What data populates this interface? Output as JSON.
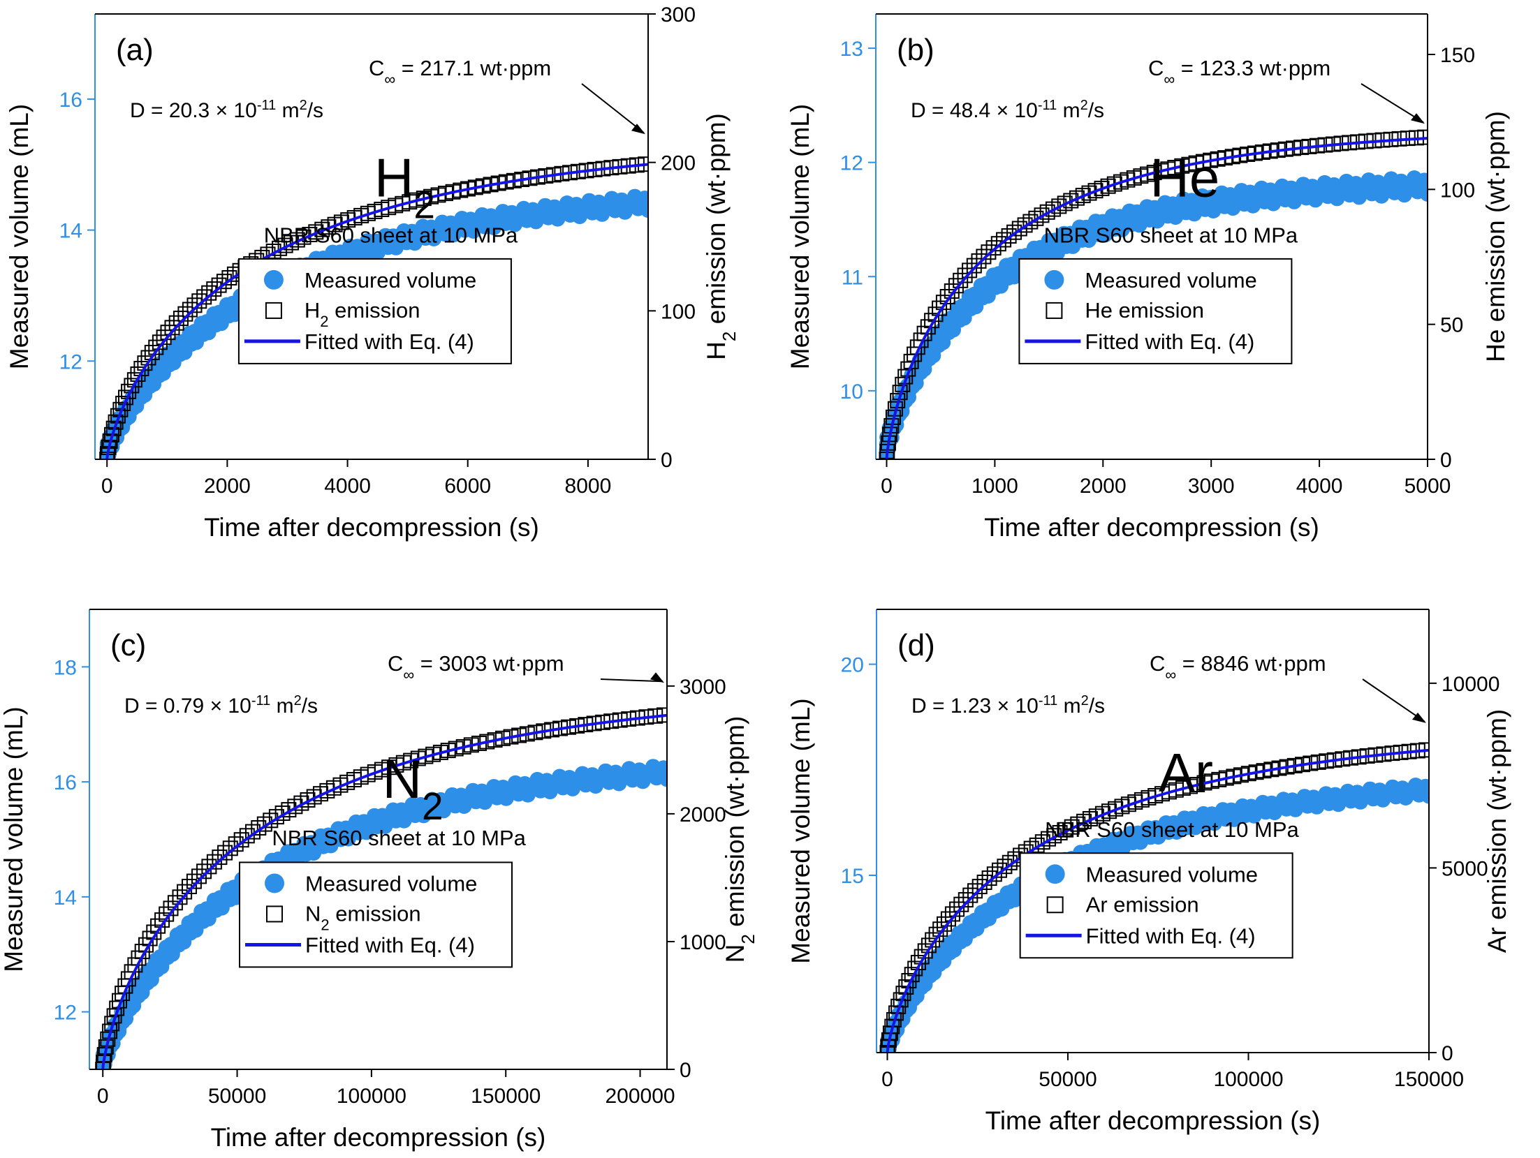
{
  "figure": {
    "shared": {
      "xlabel": "Time after decompression (s)",
      "ylabel_left": "Measured volume (mL)",
      "legend_measured": "Measured volume",
      "legend_fit": "Fitted with Eq. (4)",
      "condition": "NBR S60 sheet at 10 MPa"
    }
  },
  "colors": {
    "measured": "#2E8FE8",
    "fit": "#1414E6",
    "axis_left": "#2E8FE8",
    "emission": "#000000"
  },
  "chart_data": [
    {
      "type": "scatter",
      "panel": "(a)",
      "gas": "H",
      "gas_sub": "2",
      "title": "H2",
      "D_prefix": "D = 20.3 × 10",
      "D_exp": "-11",
      "D_unit": " m",
      "D_unit_exp": "2",
      "D_suffix": "/s",
      "c_text": " = 217.1 wt·ppm",
      "c_inf": 217.1,
      "tau": 2700,
      "xlim": [
        -200,
        9000
      ],
      "xticks": [
        "0",
        "2000",
        "4000",
        "6000",
        "8000"
      ],
      "xtick_values": [
        0,
        2000,
        4000,
        6000,
        8000
      ],
      "ylim_left": [
        10.5,
        17.3
      ],
      "yticks_left": [
        "12",
        "14",
        "16"
      ],
      "ytick_values_left": [
        12,
        14,
        16
      ],
      "ylim_right": [
        0,
        300
      ],
      "yticks_right": [
        "0",
        "100",
        "200",
        "300"
      ],
      "ytick_values_right": [
        0,
        100,
        200,
        300
      ],
      "ylabel_right_main": "H",
      "ylabel_right_sub": "2",
      "ylabel_right_rest": " emission (wt·ppm)",
      "legend_emission_main": "H",
      "legend_emission_sub": "2",
      "legend_emission_rest": " emission",
      "measured_start": 10.6,
      "measured_end": 14.7,
      "measured_band": 0.28,
      "series": [
        {
          "name": "Measured volume",
          "axis": "left"
        },
        {
          "name": "H2 emission",
          "axis": "right"
        },
        {
          "name": "Fitted with Eq. (4)",
          "axis": "right"
        }
      ]
    },
    {
      "type": "scatter",
      "panel": "(b)",
      "gas": "He",
      "gas_sub": "",
      "title": "He",
      "D_prefix": "D = 48.4 × 10",
      "D_exp": "-11",
      "D_unit": " m",
      "D_unit_exp": "2",
      "D_suffix": "/s",
      "c_text": " = 123.3 wt·ppm",
      "c_inf": 123.3,
      "tau": 1000,
      "xlim": [
        -100,
        5000
      ],
      "xticks": [
        "0",
        "1000",
        "2000",
        "3000",
        "4000",
        "5000"
      ],
      "xtick_values": [
        0,
        1000,
        2000,
        3000,
        4000,
        5000
      ],
      "ylim_left": [
        9.4,
        13.3
      ],
      "yticks_left": [
        "10",
        "11",
        "12",
        "13"
      ],
      "ytick_values_left": [
        10,
        11,
        12,
        13
      ],
      "ylim_right": [
        0,
        165
      ],
      "yticks_right": [
        "0",
        "50",
        "100",
        "150"
      ],
      "ytick_values_right": [
        0,
        50,
        100,
        150
      ],
      "ylabel_right_main": "He",
      "ylabel_right_sub": "",
      "ylabel_right_rest": " emission (wt·ppm)",
      "legend_emission_main": "He",
      "legend_emission_sub": "",
      "legend_emission_rest": " emission",
      "measured_start": 9.5,
      "measured_end": 11.85,
      "measured_band": 0.18,
      "series": [
        {
          "name": "Measured volume",
          "axis": "left"
        },
        {
          "name": "He emission",
          "axis": "right"
        },
        {
          "name": "Fitted with Eq. (4)",
          "axis": "right"
        }
      ]
    },
    {
      "type": "scatter",
      "panel": "(c)",
      "gas": "N",
      "gas_sub": "2",
      "title": "N2",
      "D_prefix": "D = 0.79 × 10",
      "D_exp": "-11",
      "D_unit": " m",
      "D_unit_exp": "2",
      "D_suffix": "/s",
      "c_text": " = 3003 wt·ppm",
      "c_inf": 3003,
      "tau": 60000,
      "xlim": [
        -5000,
        210000
      ],
      "xticks": [
        "0",
        "50000",
        "100000",
        "150000",
        "200000"
      ],
      "xtick_values": [
        0,
        50000,
        100000,
        150000,
        200000
      ],
      "ylim_left": [
        11.0,
        19.0
      ],
      "yticks_left": [
        "12",
        "14",
        "16",
        "18"
      ],
      "ytick_values_left": [
        12,
        14,
        16,
        18
      ],
      "ylim_right": [
        0,
        3600
      ],
      "yticks_right": [
        "0",
        "1000",
        "2000",
        "3000"
      ],
      "ytick_values_right": [
        0,
        1000,
        2000,
        3000
      ],
      "ylabel_right_main": "N",
      "ylabel_right_sub": "2",
      "ylabel_right_rest": " emission (wt·ppm)",
      "legend_emission_main": "N",
      "legend_emission_sub": "2",
      "legend_emission_rest": " emission",
      "measured_start": 11.1,
      "measured_end": 16.5,
      "measured_band": 0.3,
      "series": [
        {
          "name": "Measured volume",
          "axis": "left"
        },
        {
          "name": "N2 emission",
          "axis": "right"
        },
        {
          "name": "Fitted with Eq. (4)",
          "axis": "right"
        }
      ]
    },
    {
      "type": "scatter",
      "panel": "(d)",
      "gas": "Ar",
      "gas_sub": "",
      "title": "Ar",
      "D_prefix": "D = 1.23 × 10",
      "D_exp": "-11",
      "D_unit": " m",
      "D_unit_exp": "2",
      "D_suffix": "/s",
      "c_text": " = 8846 wt·ppm",
      "c_inf": 8846,
      "tau": 42000,
      "xlim": [
        -3000,
        150000
      ],
      "xticks": [
        "0",
        "50000",
        "100000",
        "150000"
      ],
      "xtick_values": [
        0,
        50000,
        100000,
        150000
      ],
      "ylim_left": [
        10.8,
        21.3
      ],
      "yticks_left": [
        "15",
        "20"
      ],
      "ytick_values_left": [
        15,
        20
      ],
      "ylim_right": [
        0,
        12000
      ],
      "yticks_right": [
        "0",
        "5000",
        "10000"
      ],
      "ytick_values_right": [
        0,
        5000,
        10000
      ],
      "ylabel_right_main": "Ar",
      "ylabel_right_sub": "",
      "ylabel_right_rest": " emission (wt·ppm)",
      "legend_emission_main": "Ar",
      "legend_emission_sub": "",
      "legend_emission_rest": " emission",
      "measured_start": 10.9,
      "measured_end": 17.4,
      "measured_band": 0.35,
      "series": [
        {
          "name": "Measured volume",
          "axis": "left"
        },
        {
          "name": "Ar emission",
          "axis": "right"
        },
        {
          "name": "Fitted with Eq. (4)",
          "axis": "right"
        }
      ]
    }
  ]
}
